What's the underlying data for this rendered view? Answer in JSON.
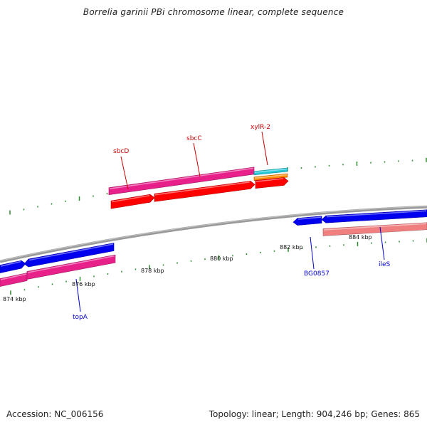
{
  "title": "Borrelia garinii PBi chromosome linear, complete sequence",
  "footer": {
    "accession": "Accession: NC_006156",
    "summary": "Topology: linear; Length: 904,246 bp; Genes: 865"
  },
  "colors": {
    "backbone": "#808080",
    "tick": "#2e8b2e",
    "pink_feature": "#e8208a",
    "red_feature": "#ff0000",
    "blue_feature": "#0000ee",
    "cyan_feature": "#20c8d8",
    "orange_feature": "#ff8c00",
    "salmon_feature": "#f08080",
    "label_forward": "#cc0000",
    "label_reverse": "#0000cc"
  },
  "scale_labels": [
    "874 kbp",
    "876 kbp",
    "878 kbp",
    "880 kbp",
    "882 kbp",
    "884 kbp"
  ],
  "gene_labels": [
    {
      "name": "sbcD",
      "strand": "forward"
    },
    {
      "name": "sbcC",
      "strand": "forward"
    },
    {
      "name": "xylR-2",
      "strand": "forward"
    },
    {
      "name": "topA",
      "strand": "reverse"
    },
    {
      "name": "BG0857",
      "strand": "reverse"
    },
    {
      "name": "ileS",
      "strand": "reverse"
    }
  ]
}
